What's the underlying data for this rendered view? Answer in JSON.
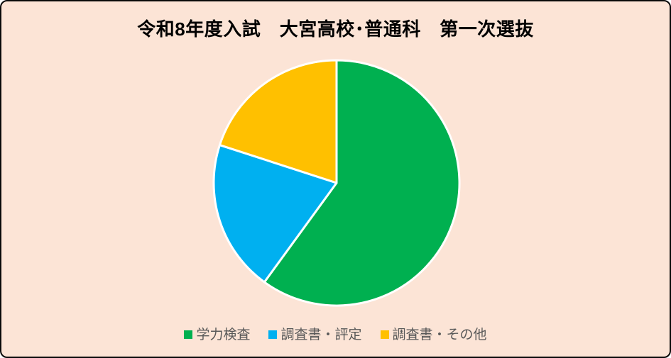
{
  "page": {
    "background_color": "#FCE4D6",
    "frame_border_color": "#0a0a0a"
  },
  "chart_data": {
    "type": "pie",
    "title": "令和8年度入試　大宮高校･普通科　第一次選抜",
    "title_color": "#000000",
    "series": [
      {
        "name": "学力検査",
        "value": 60,
        "color": "#00B050"
      },
      {
        "name": "調査書・評定",
        "value": 20,
        "color": "#00B0F0"
      },
      {
        "name": "調査書・その他",
        "value": 20,
        "color": "#FFC000"
      }
    ],
    "values_unit": "percent (estimated from slice angles)",
    "start_angle": "top (12 o'clock)",
    "direction": "clockwise",
    "slice_border_color": "#FFFFFF",
    "legend_position": "bottom",
    "legend_text_color": "#595959",
    "grid": "off"
  }
}
